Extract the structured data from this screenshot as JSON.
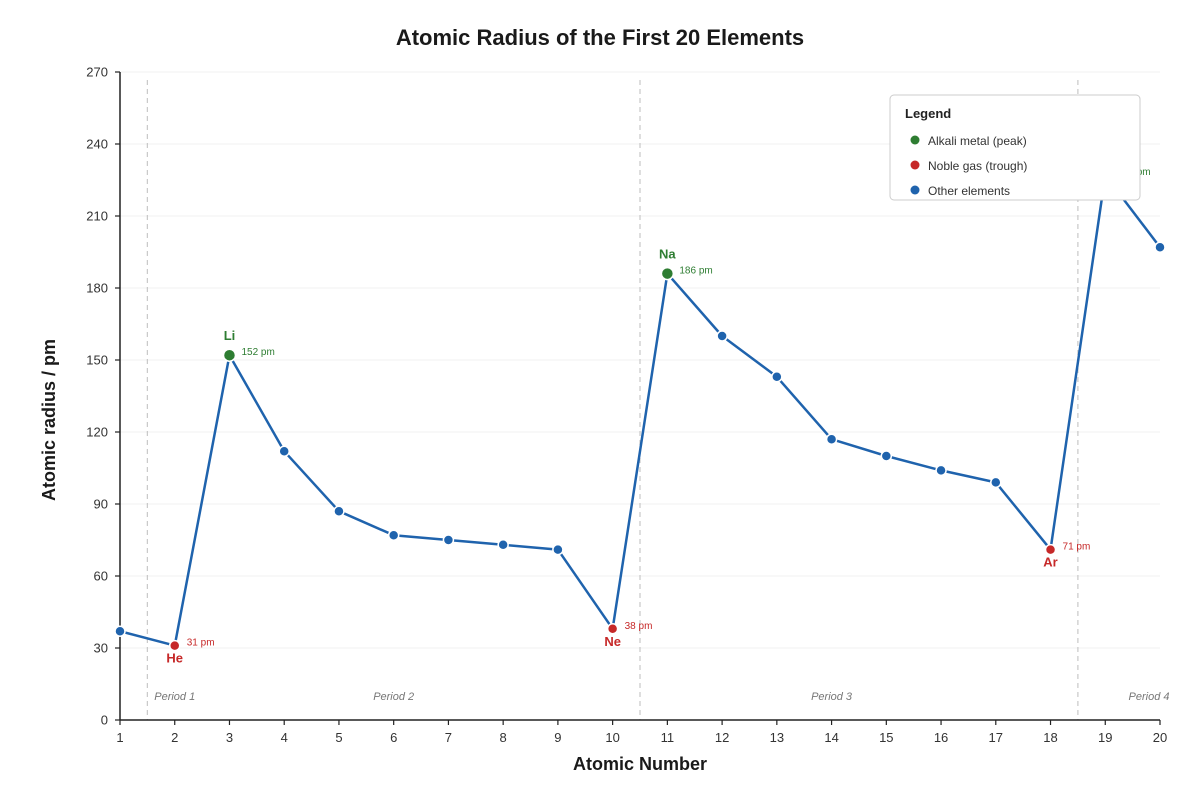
{
  "chart_data": {
    "type": "line",
    "title": "Atomic Radius of the First 20 Elements",
    "xlabel": "Atomic Number",
    "ylabel": "Atomic radius / pm",
    "xlim": [
      1,
      20
    ],
    "ylim": [
      0,
      270
    ],
    "x_ticks": [
      1,
      2,
      3,
      4,
      5,
      6,
      7,
      8,
      9,
      10,
      11,
      12,
      13,
      14,
      15,
      16,
      17,
      18,
      19,
      20
    ],
    "y_ticks": [
      0,
      30,
      60,
      90,
      120,
      150,
      180,
      210,
      240,
      270
    ],
    "grid": "horizontal, light",
    "x": [
      1,
      2,
      3,
      4,
      5,
      6,
      7,
      8,
      9,
      10,
      11,
      12,
      13,
      14,
      15,
      16,
      17,
      18,
      19,
      20
    ],
    "series": [
      {
        "name": "Atomic radius",
        "color": "#1f63ad",
        "values": [
          37,
          31,
          152,
          112,
          87,
          77,
          75,
          73,
          71,
          38,
          186,
          160,
          143,
          117,
          110,
          104,
          99,
          71,
          227,
          197
        ]
      }
    ],
    "highlights": [
      {
        "x": 2,
        "symbol": "He",
        "value_label": "31 pm",
        "kind": "noble",
        "symbol_pos": "below"
      },
      {
        "x": 3,
        "symbol": "Li",
        "value_label": "152 pm",
        "kind": "alkali",
        "symbol_pos": "above"
      },
      {
        "x": 10,
        "symbol": "Ne",
        "value_label": "38 pm",
        "kind": "noble",
        "symbol_pos": "below"
      },
      {
        "x": 11,
        "symbol": "Na",
        "value_label": "186 pm",
        "kind": "alkali",
        "symbol_pos": "above"
      },
      {
        "x": 18,
        "symbol": "Ar",
        "value_label": "71 pm",
        "kind": "noble",
        "symbol_pos": "below"
      },
      {
        "x": 19,
        "symbol": "",
        "value_label": "227 pm",
        "kind": "alkali",
        "symbol_pos": "above"
      }
    ],
    "period_dividers": [
      1.5,
      10.5,
      18.5
    ],
    "periods": [
      {
        "label": "Period 1",
        "x": 2.0
      },
      {
        "label": "Period 2",
        "x": 6.0
      },
      {
        "label": "Period 3",
        "x": 14.0
      },
      {
        "label": "Period 4",
        "x": 19.8
      }
    ],
    "legend": {
      "title": "Legend",
      "placement": "top-right",
      "items": [
        {
          "label": "Alkali metal (peak)",
          "color": "#2e7d32"
        },
        {
          "label": "Noble gas (trough)",
          "color": "#c62828"
        },
        {
          "label": "Other elements",
          "color": "#1f63ad"
        }
      ]
    },
    "colors": {
      "alkali": "#2e7d32",
      "noble": "#c62828",
      "other": "#1f63ad"
    }
  }
}
